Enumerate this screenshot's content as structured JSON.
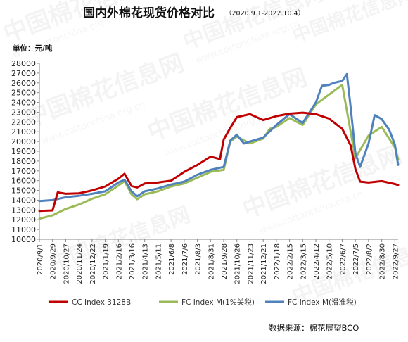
{
  "chart_data": {
    "type": "line",
    "title": "国内外棉花现货价格对比",
    "subtitle": "（2020.9.1-2022.10.4）",
    "ylabel": "单位：元/吨",
    "source": "数据来源：棉花展望BCO",
    "watermark": "中国棉花信息网",
    "watermark_url": "www.cottonchina.org.cn",
    "ylim": [
      10000,
      28000
    ],
    "y_ticks": [
      "10000",
      "11000",
      "12000",
      "13000",
      "14000",
      "15000",
      "16000",
      "17000",
      "18000",
      "19000",
      "20000",
      "21000",
      "22000",
      "23000",
      "24000",
      "25000",
      "26000",
      "27000",
      "28000"
    ],
    "x_ticks": [
      "2020/9/1",
      "2020/9/29",
      "2020/10/27",
      "2020/11/24",
      "2020/12/22",
      "2021/1/19",
      "2021/2/16",
      "2021/3/16",
      "2021/4/13",
      "2021/5/11",
      "2021/6/8",
      "2021/7/6",
      "2021/8/3",
      "2021/8/31",
      "2021/9/28",
      "2021/10/26",
      "2021/11/23",
      "2021/12/21",
      "2022/1/18",
      "2022/2/15",
      "2022/3/15",
      "2022/4/12",
      "2022/5/10",
      "2022/6/7",
      "2022/7/5",
      "2022/8/2",
      "2022/8/30",
      "2022/9/27"
    ],
    "grid": false,
    "legend": "bottom",
    "series": [
      {
        "name": "CC Index 3128B",
        "color": "#c00000",
        "x": [
          "2020/9/1",
          "2020/9/29",
          "2020/10/10",
          "2020/10/27",
          "2020/11/24",
          "2020/12/22",
          "2021/1/19",
          "2021/2/16",
          "2021/3/1",
          "2021/3/16",
          "2021/3/28",
          "2021/4/13",
          "2021/5/11",
          "2021/6/8",
          "2021/7/6",
          "2021/8/3",
          "2021/8/31",
          "2021/9/20",
          "2021/9/28",
          "2021/10/12",
          "2021/10/26",
          "2021/11/23",
          "2021/12/21",
          "2022/1/18",
          "2022/2/15",
          "2022/3/15",
          "2022/4/12",
          "2022/5/10",
          "2022/6/7",
          "2022/6/25",
          "2022/7/5",
          "2022/7/15",
          "2022/8/2",
          "2022/8/30",
          "2022/9/27",
          "2022/10/4"
        ],
        "values": [
          12900,
          12950,
          14800,
          14650,
          14700,
          15000,
          15400,
          16200,
          16700,
          15450,
          15300,
          15700,
          15800,
          16000,
          16900,
          17600,
          18450,
          18200,
          20200,
          21400,
          22500,
          22800,
          22200,
          22600,
          22850,
          22950,
          22800,
          22350,
          21300,
          19600,
          17200,
          15900,
          15800,
          15950,
          15650,
          15550
        ]
      },
      {
        "name": "FC Index M(1%关税)",
        "color": "#9bbb59",
        "x": [
          "2020/9/1",
          "2020/9/29",
          "2020/10/27",
          "2020/11/24",
          "2020/12/22",
          "2021/1/19",
          "2021/2/16",
          "2021/3/1",
          "2021/3/16",
          "2021/3/28",
          "2021/4/13",
          "2021/5/11",
          "2021/6/8",
          "2021/7/6",
          "2021/8/3",
          "2021/8/31",
          "2021/9/28",
          "2021/10/12",
          "2021/10/26",
          "2021/11/23",
          "2021/12/21",
          "2022/1/4",
          "2022/1/18",
          "2022/2/15",
          "2022/3/15",
          "2022/4/12",
          "2022/5/10",
          "2022/6/7",
          "2022/7/5",
          "2022/8/2",
          "2022/8/30",
          "2022/9/27",
          "2022/10/4"
        ],
        "values": [
          12100,
          12450,
          13100,
          13550,
          14150,
          14600,
          15500,
          15950,
          14600,
          14100,
          14600,
          14900,
          15400,
          15700,
          16300,
          16900,
          17100,
          20000,
          20500,
          19800,
          20300,
          21300,
          21500,
          22400,
          21700,
          23800,
          24800,
          25800,
          18300,
          20600,
          21500,
          19400,
          18200
        ]
      },
      {
        "name": "FC Index M(滑准税)",
        "color": "#4f81bd",
        "x": [
          "2020/9/1",
          "2020/9/29",
          "2020/10/27",
          "2020/11/24",
          "2020/12/22",
          "2021/1/19",
          "2021/2/16",
          "2021/3/1",
          "2021/3/16",
          "2021/3/28",
          "2021/4/13",
          "2021/5/11",
          "2021/6/8",
          "2021/7/6",
          "2021/8/3",
          "2021/8/31",
          "2021/9/28",
          "2021/10/12",
          "2021/10/26",
          "2021/11/10",
          "2021/11/23",
          "2021/12/21",
          "2022/1/18",
          "2022/2/15",
          "2022/3/15",
          "2022/4/12",
          "2022/4/25",
          "2022/5/10",
          "2022/5/20",
          "2022/6/7",
          "2022/6/17",
          "2022/6/25",
          "2022/7/5",
          "2022/7/15",
          "2022/8/2",
          "2022/8/15",
          "2022/8/30",
          "2022/9/15",
          "2022/9/27",
          "2022/10/4"
        ],
        "values": [
          13900,
          14000,
          14300,
          14450,
          14650,
          14900,
          15800,
          16100,
          14900,
          14400,
          14900,
          15200,
          15600,
          15900,
          16600,
          17100,
          17400,
          20100,
          20700,
          19800,
          20000,
          20400,
          21700,
          22800,
          21900,
          24000,
          25700,
          25800,
          26000,
          26200,
          26900,
          23500,
          18800,
          17400,
          19800,
          22700,
          22300,
          21200,
          19700,
          17600
        ]
      }
    ]
  }
}
